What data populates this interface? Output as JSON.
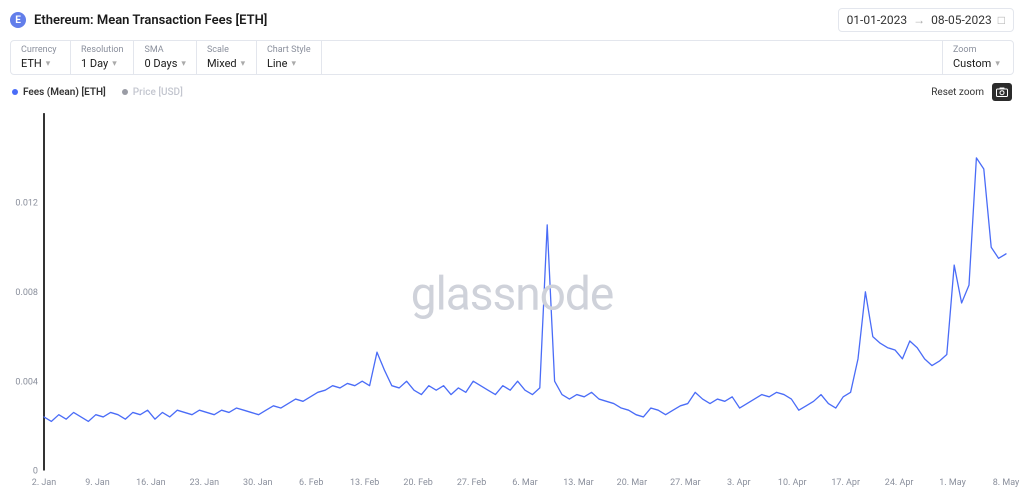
{
  "header": {
    "icon_letter": "E",
    "icon_bg": "#627eea",
    "title": "Ethereum: Mean Transaction Fees [ETH]"
  },
  "date_range": {
    "start": "01-01-2023",
    "end": "08-05-2023"
  },
  "toolbar": {
    "currency": {
      "label": "Currency",
      "value": "ETH"
    },
    "resolution": {
      "label": "Resolution",
      "value": "1 Day"
    },
    "sma": {
      "label": "SMA",
      "value": "0 Days"
    },
    "scale": {
      "label": "Scale",
      "value": "Mixed"
    },
    "chart_style": {
      "label": "Chart Style",
      "value": "Line"
    },
    "zoom": {
      "label": "Zoom",
      "value": "Custom"
    }
  },
  "legend": {
    "series1": {
      "label": "Fees (Mean) [ETH]",
      "color": "#4a6cf7"
    },
    "series2": {
      "label": "Price [USD]",
      "color": "#9a9ca5"
    }
  },
  "actions": {
    "reset_zoom": "Reset zoom"
  },
  "watermark": "glassnode",
  "chart": {
    "type": "line",
    "line_color": "#4a6cf7",
    "line_width": 1.3,
    "background_color": "#ffffff",
    "axis_color": "#333333",
    "tick_color": "#8a8f9c",
    "tick_fontsize": 9,
    "ylim": [
      0,
      0.016
    ],
    "yticks": [
      0,
      0.004,
      0.008,
      0.012
    ],
    "ytick_labels": [
      "0",
      "0.004",
      "0.008",
      "0.012"
    ],
    "xtick_labels": [
      "2. Jan",
      "9. Jan",
      "16. Jan",
      "23. Jan",
      "30. Jan",
      "6. Feb",
      "13. Feb",
      "20. Feb",
      "27. Feb",
      "6. Mar",
      "13. Mar",
      "20. Mar",
      "27. Mar",
      "3. Apr",
      "10. Apr",
      "17. Apr",
      "24. Apr",
      "1. May",
      "8. May"
    ],
    "values": [
      0.0024,
      0.0022,
      0.0025,
      0.0023,
      0.0026,
      0.0024,
      0.0022,
      0.0025,
      0.0024,
      0.0026,
      0.0025,
      0.0023,
      0.0026,
      0.0025,
      0.0027,
      0.0023,
      0.0026,
      0.0024,
      0.0027,
      0.0026,
      0.0025,
      0.0027,
      0.0026,
      0.0025,
      0.0027,
      0.0026,
      0.0028,
      0.0027,
      0.0026,
      0.0025,
      0.0027,
      0.0029,
      0.0028,
      0.003,
      0.0032,
      0.0031,
      0.0033,
      0.0035,
      0.0036,
      0.0038,
      0.0037,
      0.0039,
      0.0038,
      0.004,
      0.0038,
      0.0053,
      0.0045,
      0.0038,
      0.0037,
      0.004,
      0.0036,
      0.0034,
      0.0038,
      0.0036,
      0.0038,
      0.0034,
      0.0037,
      0.0035,
      0.004,
      0.0038,
      0.0036,
      0.0034,
      0.0038,
      0.0036,
      0.004,
      0.0036,
      0.0034,
      0.0037,
      0.011,
      0.004,
      0.0034,
      0.0032,
      0.0034,
      0.0033,
      0.0035,
      0.0032,
      0.0031,
      0.003,
      0.0028,
      0.0027,
      0.0025,
      0.0024,
      0.0028,
      0.0027,
      0.0025,
      0.0027,
      0.0029,
      0.003,
      0.0035,
      0.0032,
      0.003,
      0.0032,
      0.0031,
      0.0033,
      0.0028,
      0.003,
      0.0032,
      0.0034,
      0.0033,
      0.0035,
      0.0034,
      0.0032,
      0.0027,
      0.0029,
      0.0031,
      0.0034,
      0.003,
      0.0028,
      0.0033,
      0.0035,
      0.005,
      0.008,
      0.006,
      0.0057,
      0.0055,
      0.0054,
      0.005,
      0.0058,
      0.0055,
      0.005,
      0.0047,
      0.0049,
      0.0052,
      0.0092,
      0.0075,
      0.0083,
      0.014,
      0.0135,
      0.01,
      0.0095,
      0.0097
    ]
  }
}
